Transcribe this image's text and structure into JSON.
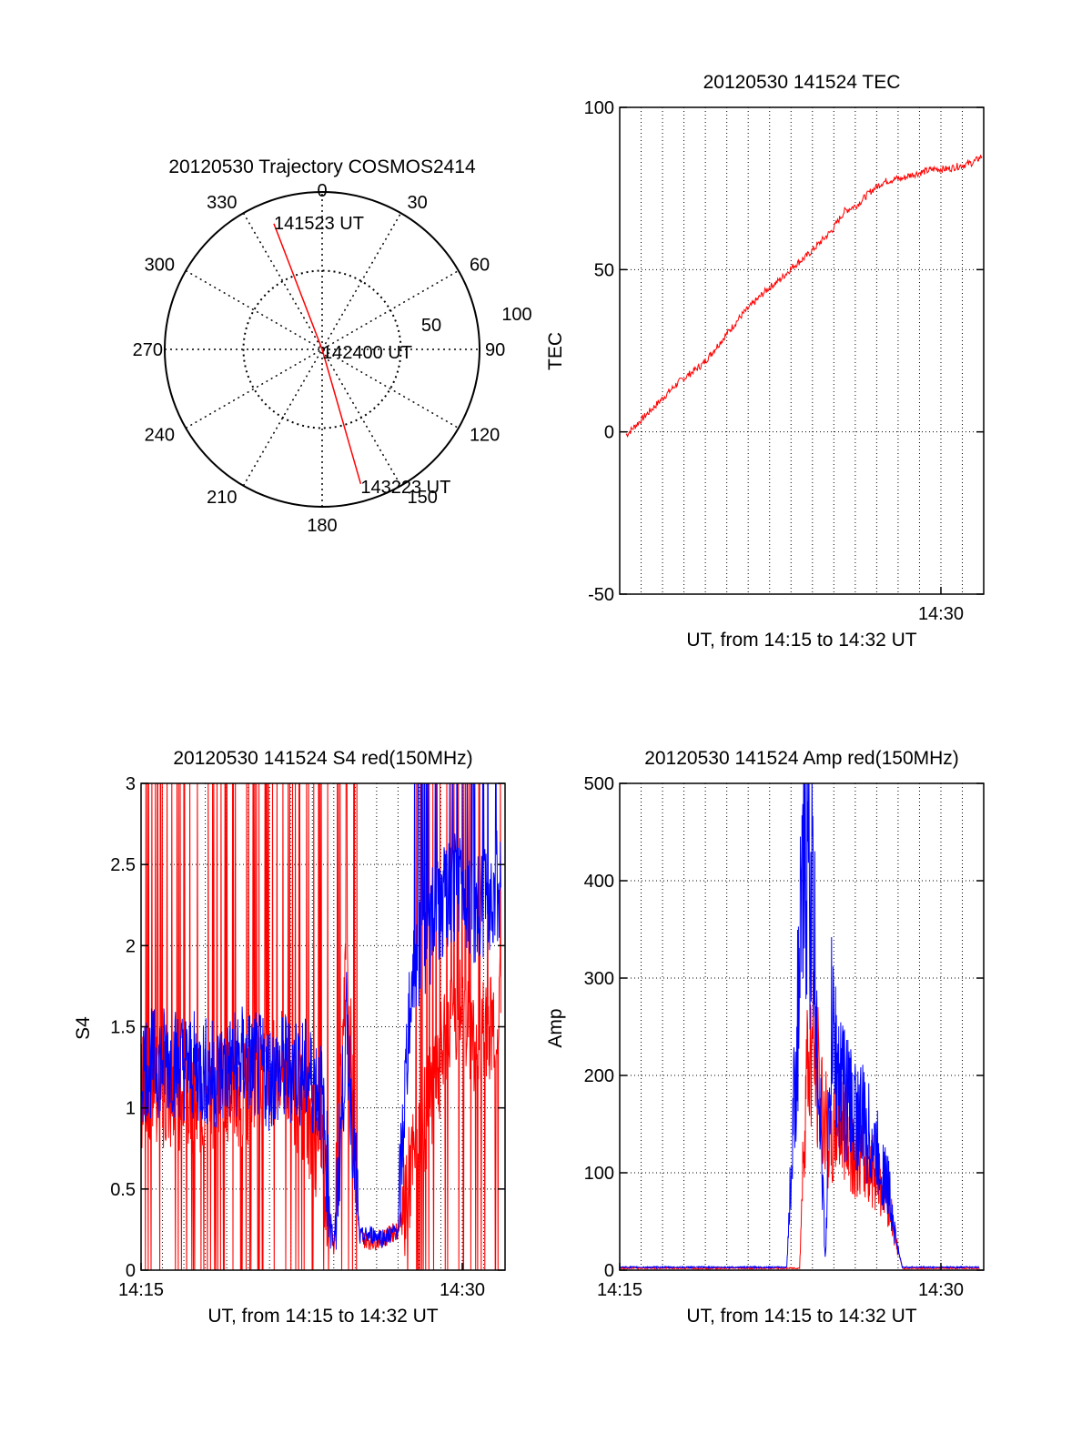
{
  "colors": {
    "red": "#ff0000",
    "blue": "#0000ff",
    "axis": "#000000",
    "grid": "#000000"
  },
  "chart_data": [
    {
      "type": "polar-trajectory",
      "title": "20120530 Trajectory COSMOS2414",
      "angle_ticks": [
        "0",
        "30",
        "60",
        "90",
        "120",
        "150",
        "180",
        "210",
        "240",
        "270",
        "300",
        "330"
      ],
      "radial_ticks": [
        "50",
        "100"
      ],
      "grid": true,
      "series": [
        {
          "color": "red",
          "points": [
            {
              "azimuth": 339,
              "elevation": 13
            },
            {
              "azimuth": 90,
              "elevation": 90
            },
            {
              "azimuth": 164,
              "elevation": 10
            }
          ]
        }
      ],
      "annotations": [
        {
          "text": "141523 UT",
          "azimuth": 339,
          "elevation": 13
        },
        {
          "text": "142400 UT",
          "azimuth": 90,
          "elevation": 90
        },
        {
          "text": "143223 UT",
          "azimuth": 164,
          "elevation": 10
        }
      ]
    },
    {
      "type": "line",
      "title": "20120530 141524 TEC",
      "xlabel": "UT, from 14:15 to 14:32 UT",
      "ylabel": "TEC",
      "xlim": [
        14.25,
        14.5333
      ],
      "ylim": [
        -50,
        100
      ],
      "yticks": [
        "100",
        "50",
        "0",
        "-50"
      ],
      "xticks": [
        "14:30"
      ],
      "grid": true,
      "series": [
        {
          "color": "red",
          "x": [
            14.255,
            14.265,
            14.275,
            14.285,
            14.295,
            14.305,
            14.315,
            14.325,
            14.335,
            14.345,
            14.355,
            14.365,
            14.375,
            14.385,
            14.395,
            14.405,
            14.41,
            14.415,
            14.425,
            14.435,
            14.445,
            14.455,
            14.465,
            14.47,
            14.475,
            14.485,
            14.495,
            14.505,
            14.515,
            14.525,
            14.532
          ],
          "y": [
            -1,
            3,
            7,
            11,
            15,
            18,
            21,
            26,
            31,
            36,
            40,
            44,
            47,
            51,
            54,
            58,
            60,
            62,
            68,
            70,
            74,
            77,
            78,
            78,
            79,
            80,
            81,
            81,
            82,
            83,
            85
          ]
        }
      ]
    },
    {
      "type": "line",
      "title": "20120530 141524 S4 red(150MHz)",
      "xlabel": "UT, from 14:15 to 14:32 UT",
      "ylabel": "S4",
      "xlim": [
        14.25,
        14.5333
      ],
      "ylim": [
        0,
        3
      ],
      "yticks": [
        "3",
        "2.5",
        "2",
        "1.5",
        "1",
        "0.5",
        "0"
      ],
      "xticks": [
        "14:15",
        "14:30"
      ],
      "grid": true,
      "series": [
        {
          "name": "",
          "color": "red",
          "x": [
            14.25,
            14.27,
            14.29,
            14.31,
            14.33,
            14.35,
            14.36,
            14.37,
            14.38,
            14.39,
            14.4,
            14.41,
            14.42,
            14.43,
            14.44,
            14.45,
            14.46,
            14.47,
            14.48,
            14.49,
            14.5,
            14.51,
            14.52,
            14.53
          ],
          "y": [
            1.1,
            1.1,
            1.05,
            1.1,
            1.1,
            1.15,
            1.3,
            1.1,
            0.9,
            0.7,
            0.12,
            1.9,
            0.2,
            0.18,
            0.2,
            0.25,
            0.6,
            0.9,
            1.2,
            1.5,
            1.6,
            1.4,
            1.5,
            1.6
          ]
        },
        {
          "name": "",
          "color": "blue",
          "x": [
            14.25,
            14.27,
            14.29,
            14.31,
            14.33,
            14.35,
            14.37,
            14.38,
            14.39,
            14.4,
            14.41,
            14.42,
            14.43,
            14.44,
            14.45,
            14.46,
            14.47,
            14.48,
            14.49,
            14.5,
            14.51,
            14.52,
            14.53
          ],
          "y": [
            1.25,
            1.3,
            1.25,
            1.2,
            1.3,
            1.2,
            1.25,
            1.2,
            1.1,
            0.12,
            1.5,
            0.2,
            0.22,
            0.2,
            0.25,
            1.8,
            2.0,
            2.2,
            2.3,
            2.4,
            2.2,
            2.3,
            2.4
          ]
        }
      ]
    },
    {
      "type": "line",
      "title": "20120530 141524 Amp red(150MHz)",
      "xlabel": "UT, from 14:15 to 14:32 UT",
      "ylabel": "Amp",
      "xlim": [
        14.25,
        14.5333
      ],
      "ylim": [
        0,
        500
      ],
      "yticks": [
        "500",
        "400",
        "300",
        "200",
        "100",
        "0"
      ],
      "xticks": [
        "14:15",
        "14:30"
      ],
      "grid": true,
      "series": [
        {
          "name": "",
          "color": "red",
          "x": [
            14.25,
            14.3,
            14.35,
            14.39,
            14.395,
            14.4,
            14.405,
            14.41,
            14.415,
            14.42,
            14.43,
            14.44,
            14.45,
            14.46,
            14.465,
            14.47,
            14.48,
            14.5,
            14.53
          ],
          "y": [
            2,
            2,
            2,
            2,
            200,
            230,
            190,
            150,
            120,
            160,
            130,
            110,
            100,
            70,
            30,
            2,
            2,
            2,
            2
          ]
        },
        {
          "name": "",
          "color": "blue",
          "x": [
            14.25,
            14.3,
            14.35,
            14.38,
            14.39,
            14.395,
            14.4,
            14.405,
            14.41,
            14.415,
            14.42,
            14.43,
            14.44,
            14.45,
            14.46,
            14.465,
            14.47,
            14.48,
            14.5,
            14.53
          ],
          "y": [
            3,
            3,
            3,
            3,
            300,
            450,
            380,
            200,
            10,
            250,
            200,
            170,
            150,
            120,
            80,
            30,
            3,
            3,
            3,
            3
          ]
        }
      ]
    }
  ]
}
